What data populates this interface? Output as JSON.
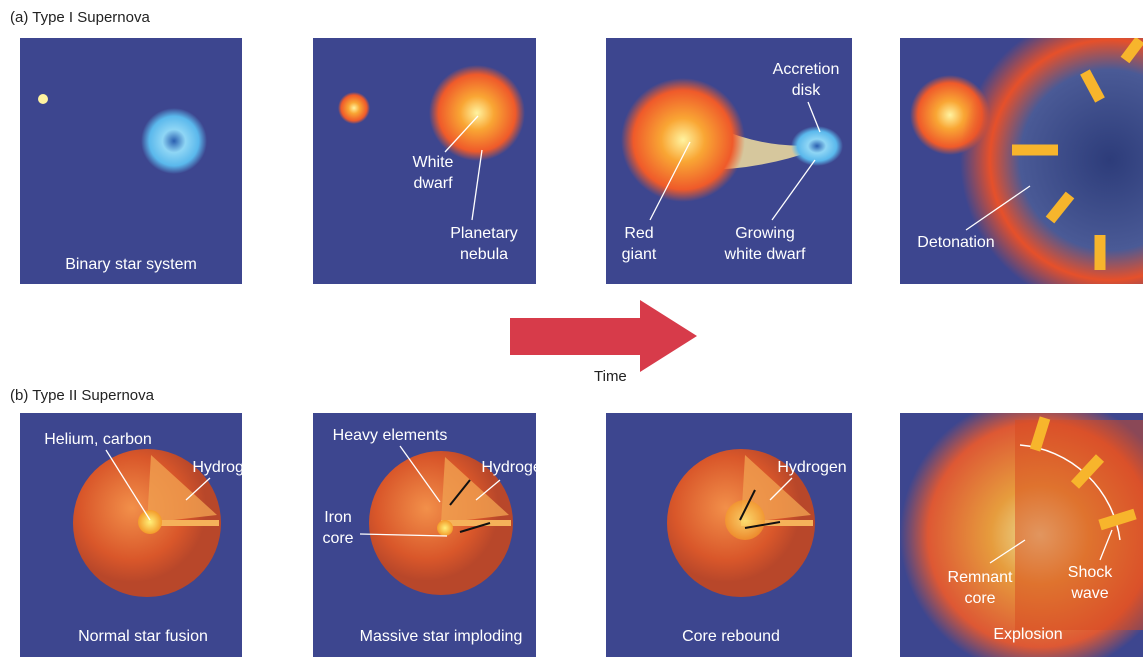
{
  "sections": [
    {
      "title": "(a) Type I Supernova",
      "panels": [
        {
          "caption": "Binary star system",
          "labels": []
        },
        {
          "labels": [
            {
              "lines": [
                "White",
                "dwarf"
              ]
            },
            {
              "lines": [
                "Planetary",
                "nebula"
              ]
            }
          ]
        },
        {
          "labels": [
            {
              "lines": [
                "Accretion",
                "disk"
              ]
            },
            {
              "lines": [
                "Red",
                "giant"
              ]
            },
            {
              "lines": [
                "Growing",
                "white dwarf"
              ]
            }
          ]
        },
        {
          "labels": [
            {
              "lines": [
                "Detonation"
              ]
            }
          ]
        }
      ]
    },
    {
      "title": "(b) Type II Supernova",
      "panels": [
        {
          "caption": "Normal star fusion",
          "labels": [
            {
              "lines": [
                "Helium, carbon"
              ]
            },
            {
              "lines": [
                "Hydrogen"
              ]
            }
          ]
        },
        {
          "caption": "Massive star imploding",
          "labels": [
            {
              "lines": [
                "Heavy elements"
              ]
            },
            {
              "lines": [
                "Hydrogen"
              ]
            },
            {
              "lines": [
                "Iron",
                "core"
              ]
            }
          ]
        },
        {
          "caption": "Core rebound",
          "labels": [
            {
              "lines": [
                "Hydrogen"
              ]
            }
          ]
        },
        {
          "caption": "Explosion",
          "labels": [
            {
              "lines": [
                "Remnant",
                "core"
              ]
            },
            {
              "lines": [
                "Shock",
                "wave"
              ]
            }
          ]
        }
      ]
    }
  ],
  "time_label": "Time"
}
